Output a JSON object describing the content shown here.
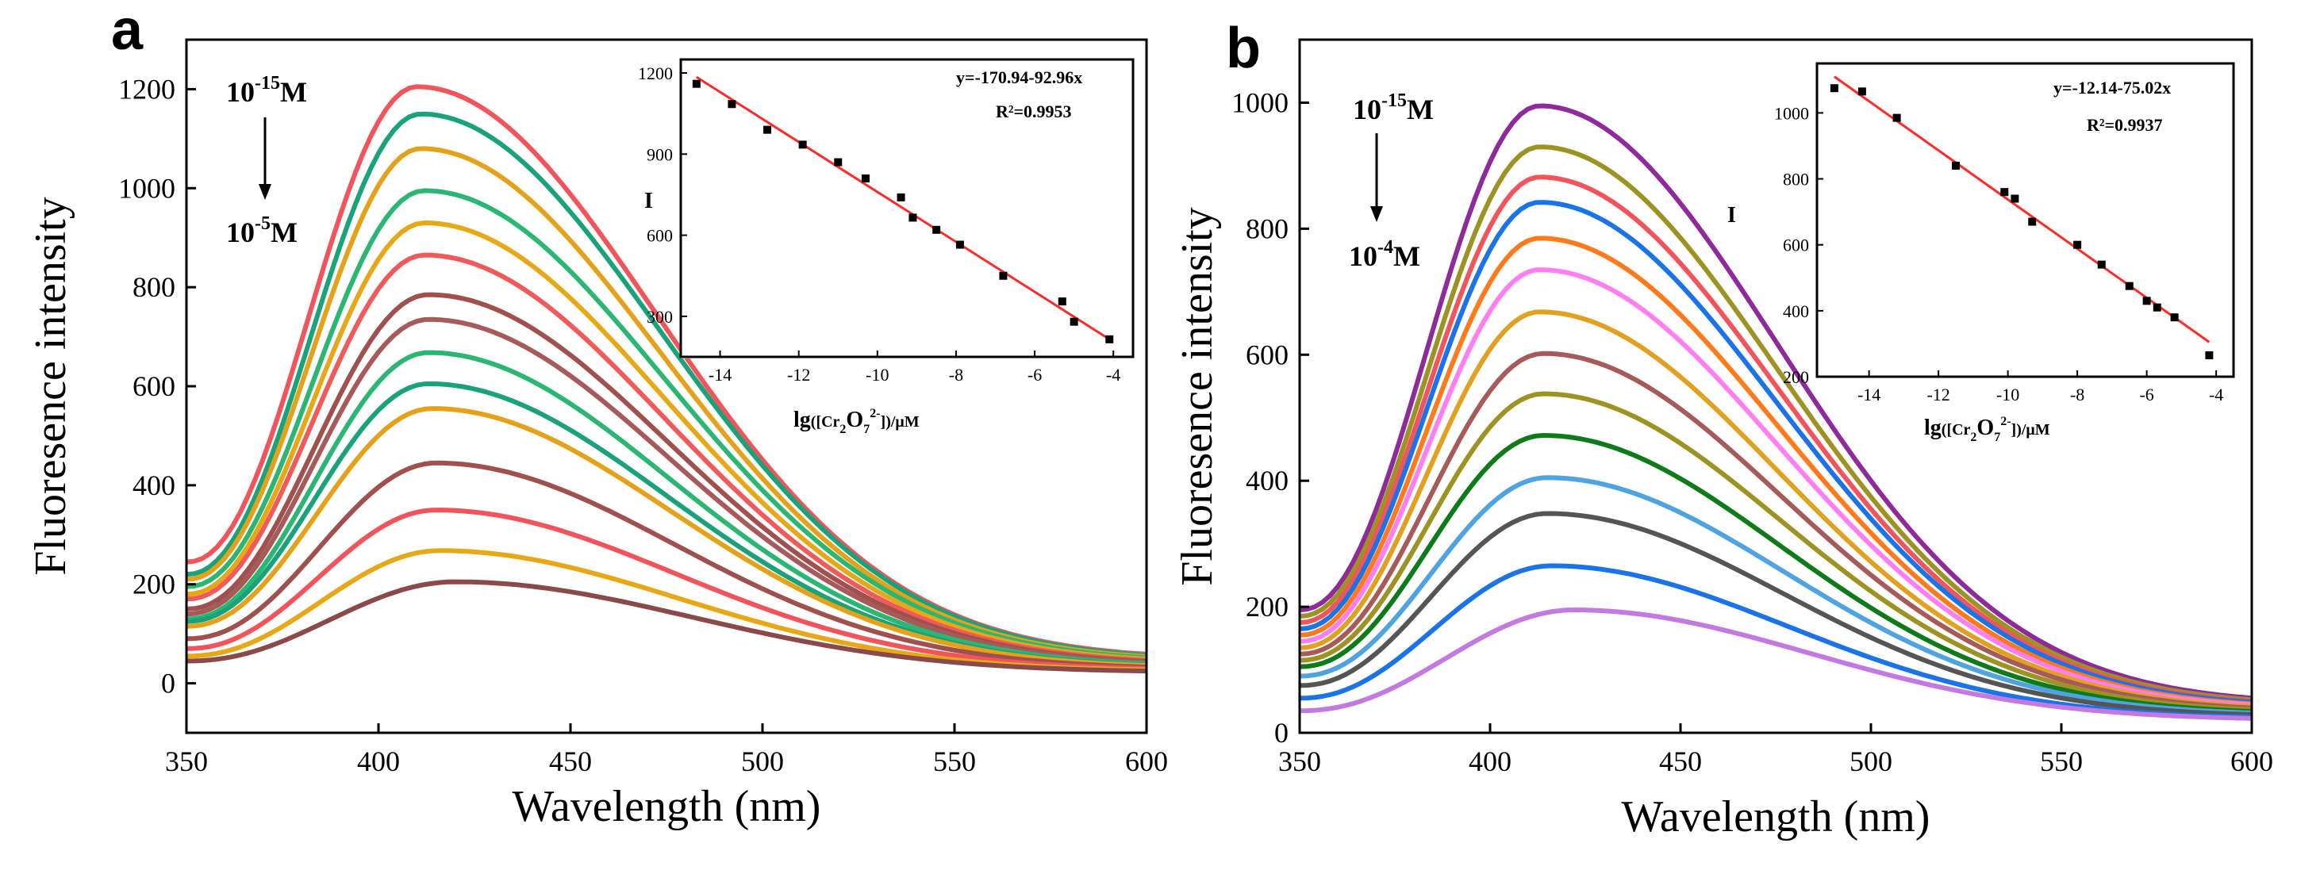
{
  "chart_data": [
    {
      "type": "line",
      "panel": "a",
      "xlabel": "Wavelength (nm)",
      "ylabel": "Fluoresence intensity",
      "xlim": [
        350,
        600
      ],
      "ylim": [
        -100,
        1300
      ],
      "xticks": [
        350,
        400,
        450,
        500,
        550,
        600
      ],
      "yticks": [
        0,
        200,
        400,
        600,
        800,
        1000,
        1200
      ],
      "concentration_top": {
        "base": "10",
        "exp": "-15",
        "unit": "M"
      },
      "concentration_bottom": {
        "base": "10",
        "exp": "-5",
        "unit": "M"
      },
      "series": [
        {
          "name": "curve-1",
          "peak": 1205,
          "start": 245,
          "end": 48,
          "peak_x": 410,
          "color": "#f2545b"
        },
        {
          "name": "curve-2",
          "peak": 1150,
          "start": 220,
          "end": 46,
          "peak_x": 411,
          "color": "#1aa37a"
        },
        {
          "name": "curve-3",
          "peak": 1080,
          "start": 210,
          "end": 44,
          "peak_x": 411,
          "color": "#e3a21a"
        },
        {
          "name": "curve-4",
          "peak": 995,
          "start": 195,
          "end": 42,
          "peak_x": 412,
          "color": "#2bb673"
        },
        {
          "name": "curve-5",
          "peak": 930,
          "start": 180,
          "end": 40,
          "peak_x": 412,
          "color": "#e6a817"
        },
        {
          "name": "curve-6",
          "peak": 865,
          "start": 170,
          "end": 38,
          "peak_x": 412,
          "color": "#f05a5a"
        },
        {
          "name": "curve-7",
          "peak": 785,
          "start": 150,
          "end": 36,
          "peak_x": 413,
          "color": "#a0504d"
        },
        {
          "name": "curve-8",
          "peak": 735,
          "start": 140,
          "end": 35,
          "peak_x": 413,
          "color": "#a65a5a"
        },
        {
          "name": "curve-9",
          "peak": 668,
          "start": 130,
          "end": 33,
          "peak_x": 413,
          "color": "#2bb673"
        },
        {
          "name": "curve-10",
          "peak": 605,
          "start": 125,
          "end": 31,
          "peak_x": 413,
          "color": "#1aa37a"
        },
        {
          "name": "curve-11",
          "peak": 555,
          "start": 115,
          "end": 30,
          "peak_x": 414,
          "color": "#e3a21a"
        },
        {
          "name": "curve-12",
          "peak": 445,
          "start": 90,
          "end": 28,
          "peak_x": 415,
          "color": "#a0504d"
        },
        {
          "name": "curve-13",
          "peak": 350,
          "start": 70,
          "end": 26,
          "peak_x": 415,
          "color": "#f2545b"
        },
        {
          "name": "curve-14",
          "peak": 268,
          "start": 55,
          "end": 24,
          "peak_x": 416,
          "color": "#e6a817"
        },
        {
          "name": "curve-15",
          "peak": 205,
          "start": 45,
          "end": 22,
          "peak_x": 420,
          "color": "#8b4a4a"
        }
      ],
      "inset": {
        "type": "scatter",
        "xlabel_prefix": "lg",
        "xlabel_species": "([Cr",
        "xlabel_sub1": "2",
        "xlabel_mid": "O",
        "xlabel_sub2": "7",
        "xlabel_sup": "2-",
        "xlabel_suffix": "])/μM",
        "ylabel": "I",
        "xlim": [
          -15,
          -3.5
        ],
        "ylim": [
          150,
          1250
        ],
        "xticks": [
          -14,
          -12,
          -10,
          -8,
          -6,
          -4
        ],
        "yticks": [
          300,
          600,
          900,
          1200
        ],
        "equation": "y=-170.94-92.96x",
        "r2": "R²=0.9953",
        "fit": {
          "x1": -14.6,
          "y1": 1185,
          "x2": -4.1,
          "y2": 215
        },
        "x": [
          -14.6,
          -13.7,
          -12.8,
          -11.9,
          -11.0,
          -10.3,
          -9.4,
          -9.1,
          -8.5,
          -7.9,
          -6.8,
          -5.3,
          -5.0,
          -4.1
        ],
        "y": [
          1160,
          1085,
          990,
          935,
          870,
          810,
          740,
          665,
          620,
          565,
          450,
          355,
          280,
          215
        ],
        "line_color": "#ff2a2a"
      }
    },
    {
      "type": "line",
      "panel": "b",
      "xlabel": "Wavelength (nm)",
      "ylabel": "Fluoresence intensity",
      "xlim": [
        350,
        600
      ],
      "ylim": [
        0,
        1100
      ],
      "xticks": [
        350,
        400,
        450,
        500,
        550,
        600
      ],
      "yticks": [
        0,
        200,
        400,
        600,
        800,
        1000
      ],
      "concentration_top": {
        "base": "10",
        "exp": "-15",
        "unit": "M"
      },
      "concentration_bottom": {
        "base": "10",
        "exp": "-4",
        "unit": "M"
      },
      "series": [
        {
          "name": "curve-1",
          "peak": 995,
          "start": 195,
          "end": 45,
          "peak_x": 413,
          "color": "#8e2a9a"
        },
        {
          "name": "curve-2",
          "peak": 930,
          "start": 185,
          "end": 43,
          "peak_x": 413,
          "color": "#9c9323"
        },
        {
          "name": "curve-3",
          "peak": 882,
          "start": 175,
          "end": 41,
          "peak_x": 413,
          "color": "#f2545b"
        },
        {
          "name": "curve-4",
          "peak": 842,
          "start": 165,
          "end": 40,
          "peak_x": 413,
          "color": "#1a73e8"
        },
        {
          "name": "curve-5",
          "peak": 785,
          "start": 155,
          "end": 38,
          "peak_x": 413,
          "color": "#ff7a1a"
        },
        {
          "name": "curve-6",
          "peak": 735,
          "start": 145,
          "end": 37,
          "peak_x": 413,
          "color": "#ff7ff0"
        },
        {
          "name": "curve-7",
          "peak": 668,
          "start": 135,
          "end": 35,
          "peak_x": 413,
          "color": "#e0a020"
        },
        {
          "name": "curve-8",
          "peak": 602,
          "start": 125,
          "end": 33,
          "peak_x": 414,
          "color": "#a65a5a"
        },
        {
          "name": "curve-9",
          "peak": 538,
          "start": 115,
          "end": 31,
          "peak_x": 414,
          "color": "#9c9323"
        },
        {
          "name": "curve-10",
          "peak": 472,
          "start": 105,
          "end": 29,
          "peak_x": 414,
          "color": "#0f7a1a"
        },
        {
          "name": "curve-11",
          "peak": 405,
          "start": 90,
          "end": 27,
          "peak_x": 415,
          "color": "#4fa3e0"
        },
        {
          "name": "curve-12",
          "peak": 348,
          "start": 75,
          "end": 25,
          "peak_x": 415,
          "color": "#555555"
        },
        {
          "name": "curve-13",
          "peak": 265,
          "start": 55,
          "end": 22,
          "peak_x": 416,
          "color": "#1a73e8"
        },
        {
          "name": "curve-14",
          "peak": 195,
          "start": 35,
          "end": 20,
          "peak_x": 422,
          "color": "#c27ae0"
        }
      ],
      "inset": {
        "type": "scatter",
        "xlabel_prefix": "lg",
        "xlabel_species": "([Cr",
        "xlabel_sub1": "2",
        "xlabel_mid": "O",
        "xlabel_sub2": "7",
        "xlabel_sup": "2-",
        "xlabel_suffix": "])/μM",
        "ylabel": "I",
        "xlim": [
          -15.5,
          -3.5
        ],
        "ylim": [
          200,
          1150
        ],
        "xticks": [
          -14,
          -12,
          -10,
          -8,
          -6,
          -4
        ],
        "yticks": [
          200,
          400,
          600,
          800,
          1000
        ],
        "equation": "y=-12.14-75.02x",
        "r2": "R²=0.9937",
        "fit": {
          "x1": -15.0,
          "y1": 1110,
          "x2": -4.2,
          "y2": 305
        },
        "x": [
          -15.0,
          -14.2,
          -13.2,
          -11.5,
          -10.1,
          -9.8,
          -9.3,
          -8.0,
          -7.3,
          -6.5,
          -6.0,
          -5.7,
          -5.2,
          -4.2
        ],
        "y": [
          1075,
          1065,
          985,
          840,
          760,
          740,
          670,
          600,
          540,
          475,
          430,
          410,
          380,
          265
        ],
        "line_color": "#ff2a2a"
      }
    }
  ]
}
